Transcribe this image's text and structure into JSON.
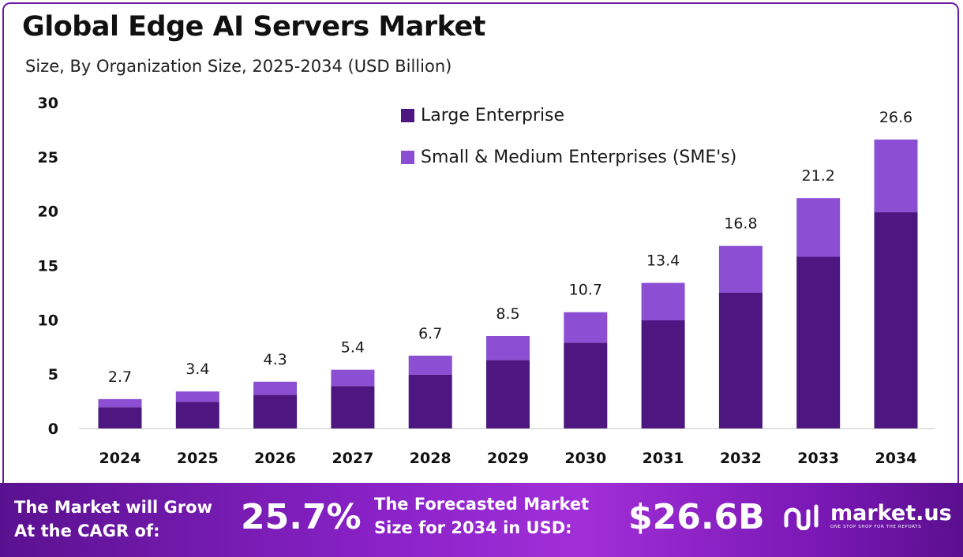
{
  "chart_data": {
    "type": "bar",
    "stacked": true,
    "title": "Global Edge AI Servers Market",
    "subtitle": "Size, By Organization Size, 2025-2034 (USD Billion)",
    "categories": [
      "2024",
      "2025",
      "2026",
      "2027",
      "2028",
      "2029",
      "2030",
      "2031",
      "2032",
      "2033",
      "2034"
    ],
    "series": [
      {
        "name": "Large Enterprise",
        "color": "#4e1680",
        "values": [
          1.95,
          2.45,
          3.1,
          3.9,
          4.95,
          6.3,
          7.9,
          9.95,
          12.5,
          15.8,
          19.9
        ]
      },
      {
        "name": "Small & Medium Enterprises (SME's)",
        "color": "#8c4fd3",
        "values": [
          0.75,
          0.95,
          1.2,
          1.5,
          1.75,
          2.2,
          2.8,
          3.45,
          4.3,
          5.4,
          6.7
        ]
      }
    ],
    "totals": [
      2.7,
      3.4,
      4.3,
      5.4,
      6.7,
      8.5,
      10.7,
      13.4,
      16.8,
      21.2,
      26.6
    ],
    "total_labels": [
      "2.7",
      "3.4",
      "4.3",
      "5.4",
      "6.7",
      "8.5",
      "10.7",
      "13.4",
      "16.8",
      "21.2",
      "26.6"
    ],
    "ylim": [
      0,
      30
    ],
    "yticks": [
      0,
      5,
      10,
      15,
      20,
      25,
      30
    ],
    "legend_position": "top-right",
    "grid": false
  },
  "footer": {
    "cagr_line1": "The Market will Grow",
    "cagr_line2": "At the CAGR of:",
    "cagr_value": "25.7%",
    "forecast_line1": "The Forecasted Market",
    "forecast_line2": "Size for 2034 in USD:",
    "forecast_value": "$26.6B",
    "brand_name": "market.us",
    "brand_tagline": "ONE STOP SHOP FOR THE REPORTS"
  },
  "colors": {
    "large_enterprise": "#4e1680",
    "sme": "#8c4fd3",
    "footer_dark": "#5a1190",
    "footer_light": "#a12fd8"
  }
}
